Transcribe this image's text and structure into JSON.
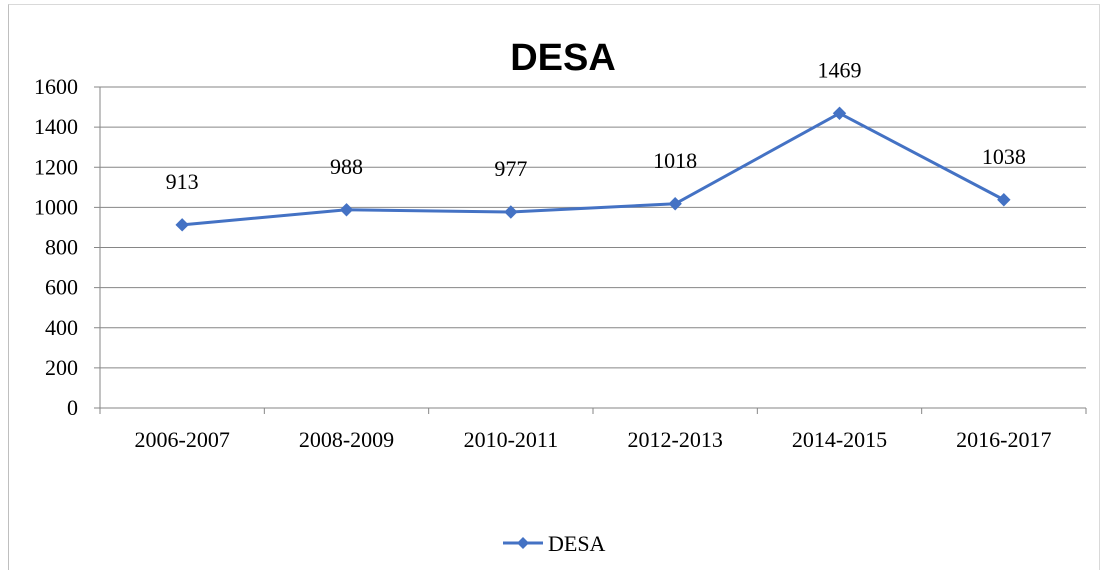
{
  "chart_data": {
    "type": "line",
    "title": "DESA",
    "xlabel": "",
    "ylabel": "",
    "categories": [
      "2006-2007",
      "2008-2009",
      "2010-2011",
      "2012-2013",
      "2014-2015",
      "2016-2017"
    ],
    "series": [
      {
        "name": "DESA",
        "values": [
          913,
          988,
          977,
          1018,
          1469,
          1038
        ],
        "color": "#4472c4",
        "marker": "diamond"
      }
    ],
    "data_labels": [
      "913",
      "988",
      "977",
      "1018",
      "1469",
      "1038"
    ],
    "ylim": [
      0,
      1600
    ],
    "yticks": [
      0,
      200,
      400,
      600,
      800,
      1000,
      1200,
      1400,
      1600
    ],
    "ytick_labels": [
      "0",
      "200",
      "400",
      "600",
      "800",
      "1000",
      "1200",
      "1400",
      "1600"
    ],
    "grid": true,
    "legend_position": "bottom",
    "gridline_color": "#868686"
  }
}
